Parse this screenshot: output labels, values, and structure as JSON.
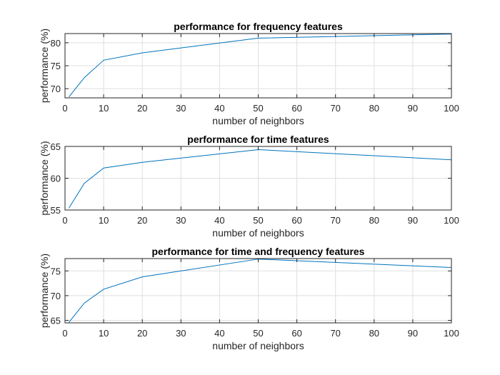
{
  "chart_data": [
    {
      "type": "line",
      "title": "performance for frequency features",
      "xlabel": "number of neighbors",
      "ylabel": "performance (%)",
      "xlim": [
        0,
        100
      ],
      "ylim": [
        68,
        82
      ],
      "xticks": [
        0,
        10,
        20,
        30,
        40,
        50,
        60,
        70,
        80,
        90,
        100
      ],
      "yticks": [
        70,
        75,
        80
      ],
      "grid": true,
      "color": "#0072bd",
      "series": [
        {
          "x": [
            1,
            5,
            10,
            20,
            50,
            100
          ],
          "values": [
            68.2,
            72.4,
            76.2,
            77.8,
            81.0,
            81.9
          ]
        }
      ]
    },
    {
      "type": "line",
      "title": "performance for time features",
      "xlabel": "number of neighbors",
      "ylabel": "performance (%)",
      "xlim": [
        0,
        100
      ],
      "ylim": [
        55,
        65
      ],
      "xticks": [
        0,
        10,
        20,
        30,
        40,
        50,
        60,
        70,
        80,
        90,
        100
      ],
      "yticks": [
        55,
        60,
        65
      ],
      "grid": true,
      "color": "#0072bd",
      "series": [
        {
          "x": [
            1,
            5,
            10,
            20,
            50,
            100
          ],
          "values": [
            55.3,
            59.2,
            61.6,
            62.5,
            64.5,
            62.9
          ]
        }
      ]
    },
    {
      "type": "line",
      "title": "performance for time and frequency features",
      "xlabel": "number of neighbors",
      "ylabel": "performance (%)",
      "xlim": [
        0,
        100
      ],
      "ylim": [
        64.5,
        77.5
      ],
      "xticks": [
        0,
        10,
        20,
        30,
        40,
        50,
        60,
        70,
        80,
        90,
        100
      ],
      "yticks": [
        65,
        70,
        75
      ],
      "grid": true,
      "color": "#0072bd",
      "series": [
        {
          "x": [
            1,
            5,
            10,
            20,
            50,
            100
          ],
          "values": [
            64.6,
            68.5,
            71.3,
            73.8,
            77.4,
            75.7
          ]
        }
      ]
    }
  ]
}
